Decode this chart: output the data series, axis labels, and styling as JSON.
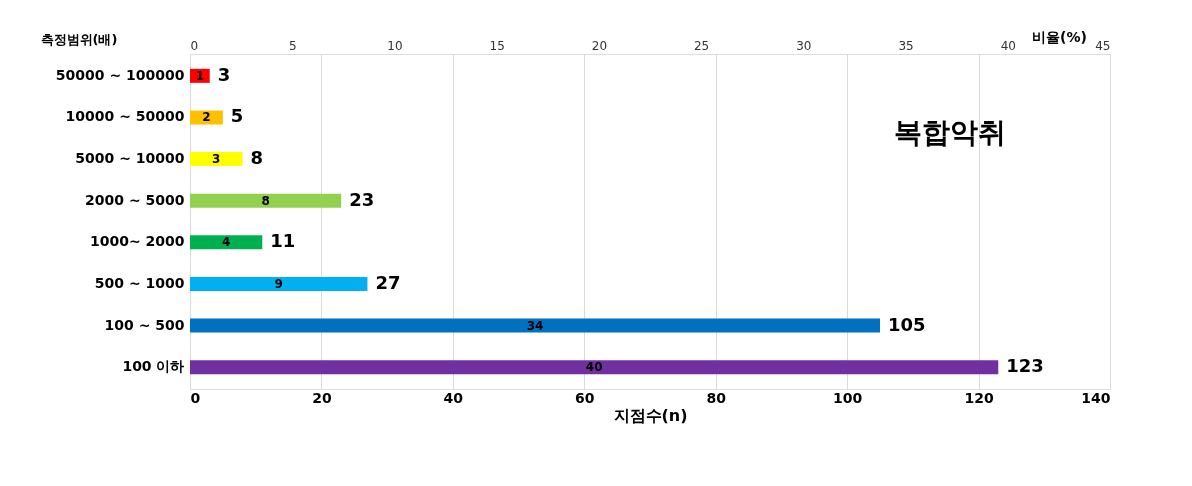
{
  "chart_data": {
    "type": "bar",
    "orientation": "horizontal",
    "title": "복합악취",
    "xlabel": "지점수(n)",
    "ylabel": "측정범위(배)",
    "x2label": "비율(%)",
    "categories": [
      "50000 ~ 100000",
      "10000 ~ 50000",
      "5000 ~ 10000",
      "2000 ~ 5000",
      "1000~ 2000",
      "500 ~ 1000",
      "100 ~ 500",
      "100 이하"
    ],
    "values": [
      3,
      5,
      8,
      23,
      11,
      27,
      105,
      123
    ],
    "colors": [
      "#ff0000",
      "#ffc000",
      "#ffff00",
      "#92d050",
      "#00b050",
      "#00b0f0",
      "#0070c0",
      "#7030a0"
    ],
    "data_labels": true,
    "annotations": [
      "1",
      "2",
      "3",
      "8",
      "4",
      "9",
      "34",
      "40"
    ],
    "xlim": [
      0,
      140
    ],
    "xticks": [
      0,
      20,
      40,
      60,
      80,
      100,
      120,
      140
    ],
    "x2lim": [
      0,
      45
    ],
    "x2ticks": [
      0,
      5,
      10,
      15,
      20,
      25,
      30,
      35,
      40,
      45
    ],
    "grid": "x"
  }
}
